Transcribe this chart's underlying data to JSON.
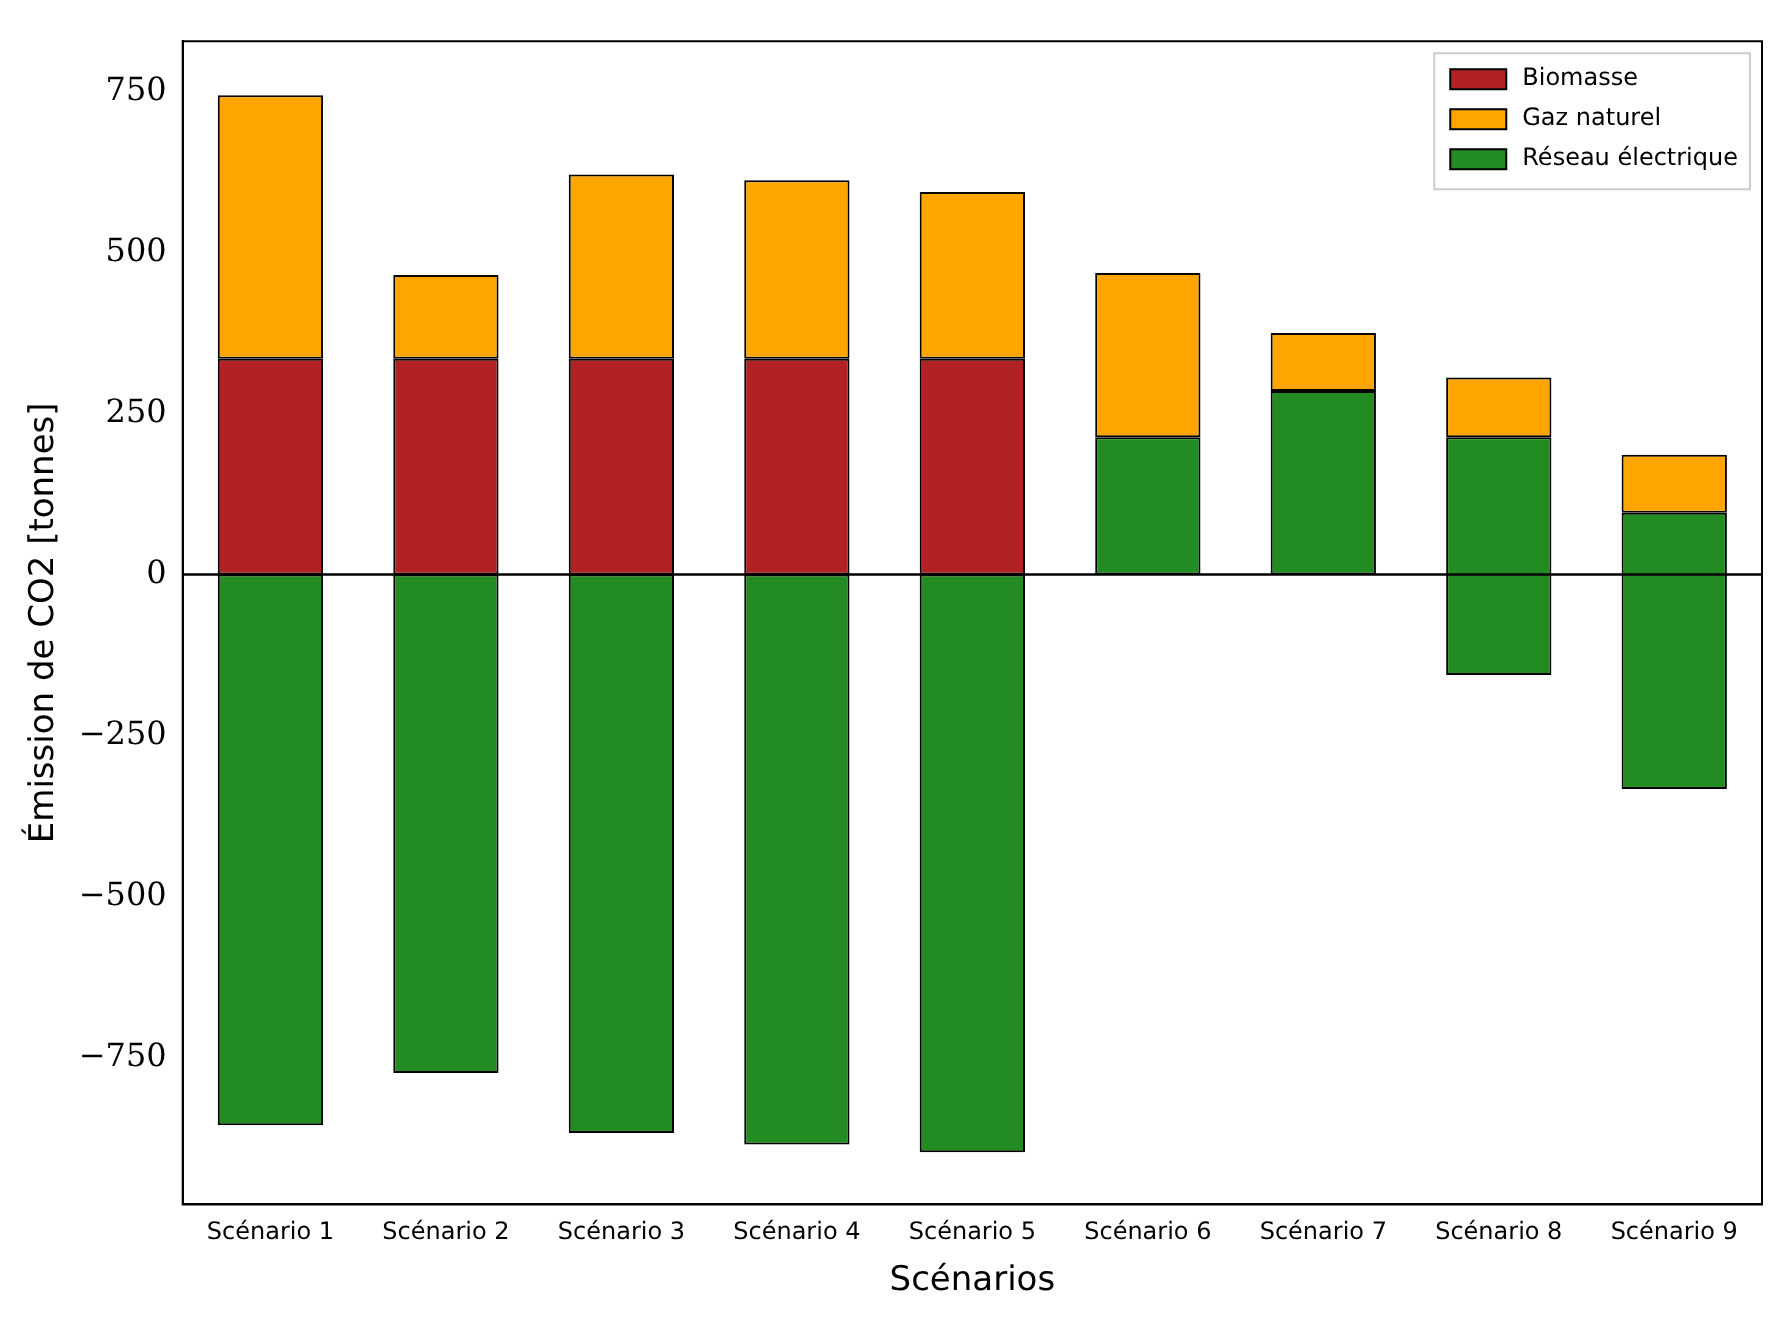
{
  "chart_data": {
    "type": "bar",
    "xlabel": "Scénarios",
    "ylabel": "Émission de CO2 [tonnes]",
    "categories": [
      "Scénario 1",
      "Scénario 2",
      "Scénario 3",
      "Scénario 4",
      "Scénario 5",
      "Scénario 6",
      "Scénario 7",
      "Scénario 8",
      "Scénario 9"
    ],
    "series": [
      {
        "name": "Biomasse",
        "color": "#b22222",
        "base": [
          0,
          0,
          0,
          0,
          0,
          null,
          null,
          null,
          null
        ],
        "values": [
          335,
          335,
          335,
          335,
          335,
          null,
          null,
          null,
          null
        ]
      },
      {
        "name": "Gaz naturel",
        "color": "#ffa500",
        "base": [
          335,
          335,
          335,
          335,
          335,
          213,
          285,
          213,
          96
        ],
        "values": [
          409,
          130,
          286,
          277,
          259,
          255,
          90,
          93,
          90
        ]
      },
      {
        "name": "Réseau électrique",
        "color": "#228b22",
        "base": [
          0,
          0,
          0,
          0,
          0,
          0,
          0,
          -156,
          -333
        ],
        "values": [
          -855,
          -774,
          -867,
          -885,
          -897,
          213,
          285,
          369,
          429
        ]
      }
    ],
    "ylim": [
      -978,
      828
    ],
    "yticks": [
      {
        "value": -750,
        "label": "−750"
      },
      {
        "value": -500,
        "label": "−500"
      },
      {
        "value": -250,
        "label": "−250"
      },
      0,
      250,
      500,
      750
    ],
    "ref_lines": [
      {
        "axis": "y",
        "value": 0,
        "color": "#000000"
      }
    ],
    "legend": "top right",
    "grid": false
  }
}
